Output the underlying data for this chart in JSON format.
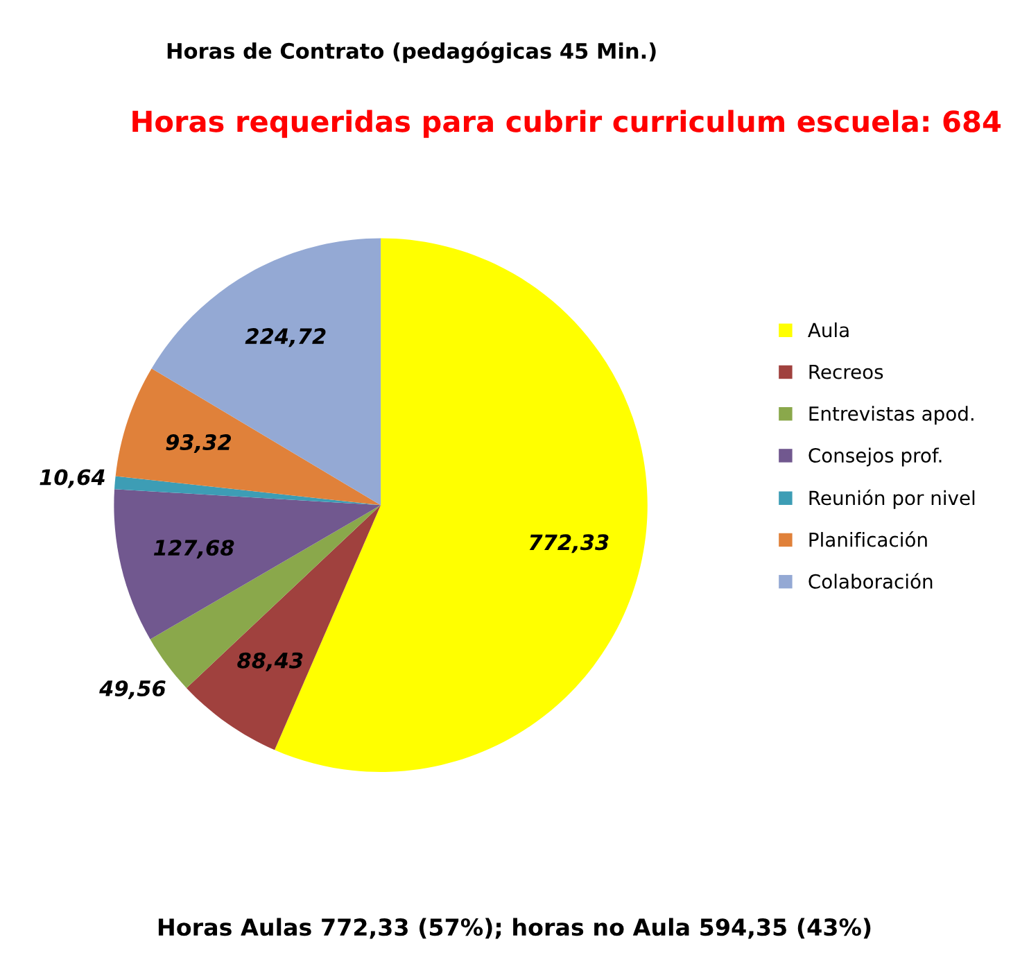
{
  "chart_data": {
    "type": "pie",
    "title": "Horas de Contrato (pedagógicas 45 Min.)",
    "subtitle": "Horas requeridas para cubrir curriculum escuela: 684",
    "categories": [
      "Aula",
      "Recreos",
      "Entrevistas apod.",
      "Consejos prof.",
      "Reunión por nivel",
      "Planificación",
      "Colaboración"
    ],
    "values": [
      772.33,
      88.43,
      49.56,
      127.68,
      10.64,
      93.32,
      224.72
    ],
    "value_labels": [
      "772,33",
      "88,43",
      "49,56",
      "127,68",
      "10,64",
      "93,32",
      "224,72"
    ],
    "colors": [
      "#ffff00",
      "#a0413e",
      "#8aa84b",
      "#71588f",
      "#3d9db5",
      "#e0813a",
      "#94a9d4"
    ],
    "legend": "right",
    "annotations": [
      "Horas Aulas 772,33 (57%); horas no Aula 594,35 (43%)"
    ]
  }
}
